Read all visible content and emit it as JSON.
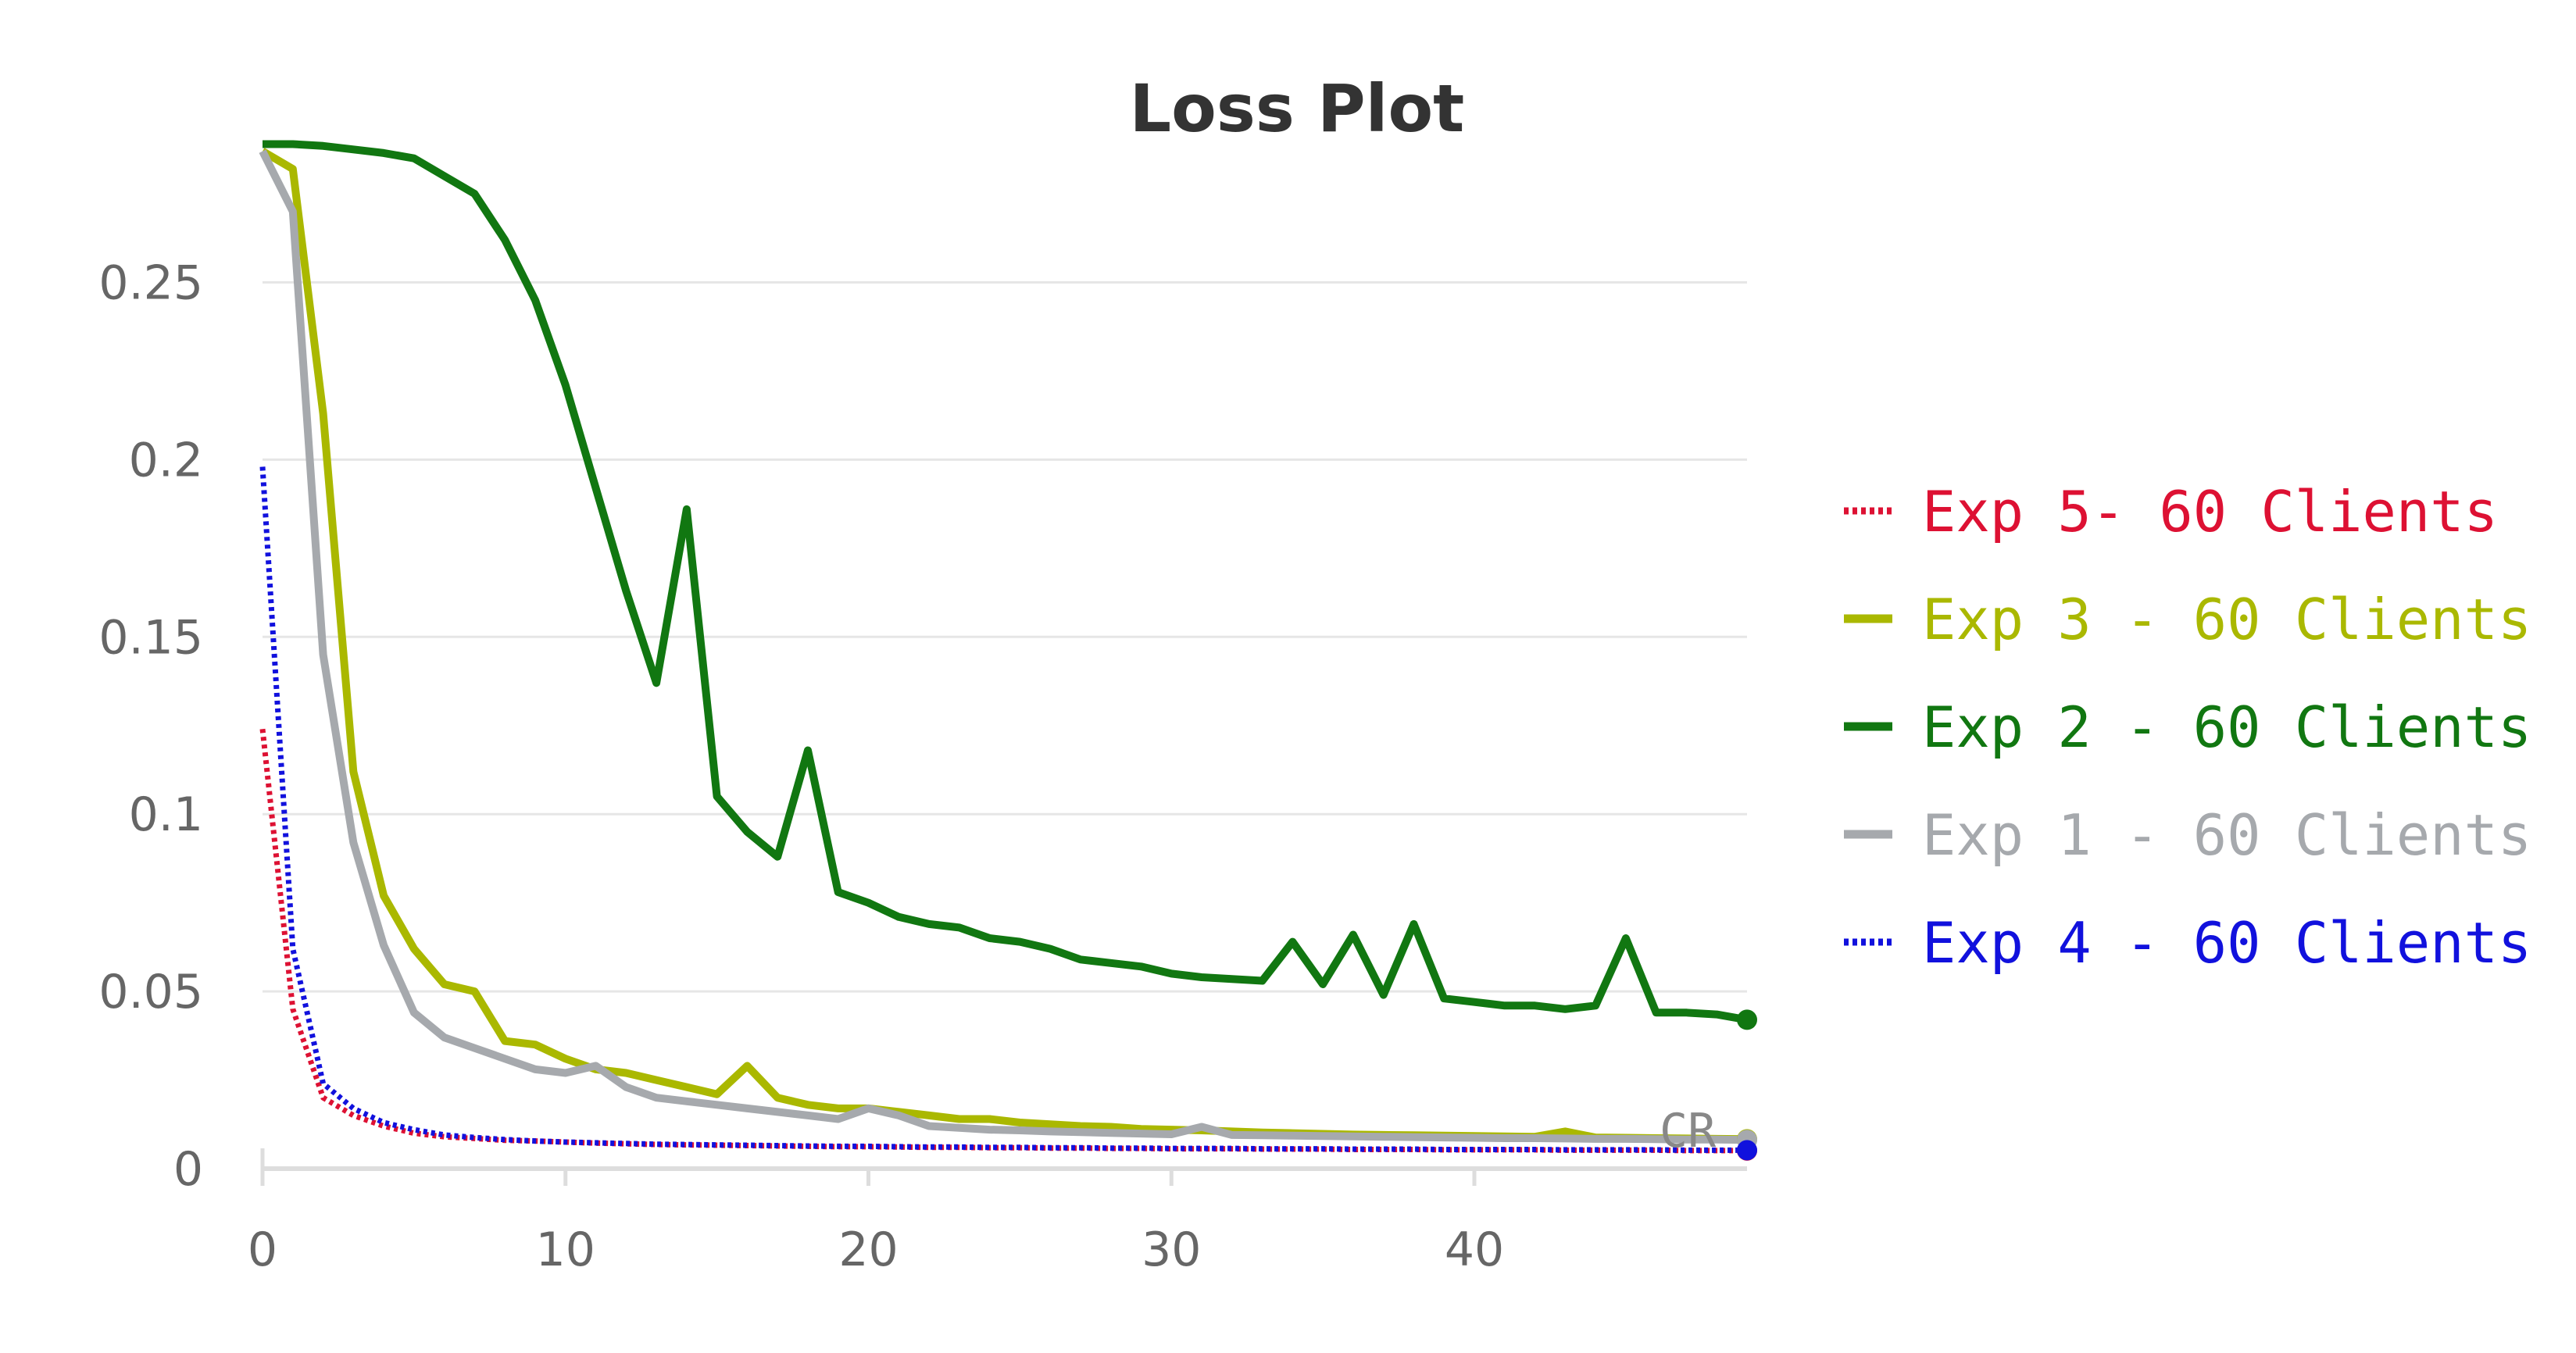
{
  "chart_data": {
    "type": "line",
    "title": "Loss Plot",
    "xlabel": "",
    "ylabel": "",
    "xlim": [
      0,
      49
    ],
    "ylim": [
      0,
      0.29
    ],
    "xticks": [
      0,
      10,
      20,
      30,
      40
    ],
    "xtick_labels": [
      "0",
      "10",
      "20",
      "30",
      "40"
    ],
    "yticks": [
      0,
      0.05,
      0.1,
      0.15,
      0.2,
      0.25
    ],
    "ytick_labels": [
      "0",
      "0.05",
      "0.1",
      "0.15",
      "0.2",
      "0.25"
    ],
    "grid": "horizontal",
    "legend_position": "right",
    "annotation": "CR",
    "series": [
      {
        "name": "Exp 5- 60 Clients",
        "color": "#dd1133",
        "style": "dotted",
        "x": [
          0,
          1,
          2,
          3,
          4,
          5,
          6,
          7,
          8,
          9,
          10,
          11,
          12,
          13,
          14,
          15,
          16,
          17,
          18,
          19,
          20,
          21,
          22,
          23,
          24,
          25,
          26,
          27,
          28,
          29,
          30,
          31,
          32,
          33,
          34,
          35,
          36,
          37,
          38,
          39,
          40,
          41,
          42,
          43,
          44,
          45,
          46,
          47,
          48,
          49
        ],
        "values": [
          0.124,
          0.045,
          0.02,
          0.015,
          0.012,
          0.01,
          0.009,
          0.0085,
          0.008,
          0.0078,
          0.0075,
          0.0072,
          0.007,
          0.0068,
          0.0067,
          0.0066,
          0.0065,
          0.0064,
          0.0063,
          0.0062,
          0.0062,
          0.0061,
          0.006,
          0.006,
          0.0059,
          0.0059,
          0.0058,
          0.0058,
          0.0057,
          0.0057,
          0.0056,
          0.0056,
          0.0056,
          0.0055,
          0.0055,
          0.0055,
          0.0054,
          0.0054,
          0.0054,
          0.0053,
          0.0053,
          0.0053,
          0.0053,
          0.0052,
          0.0052,
          0.0052,
          0.0052,
          0.0051,
          0.0051,
          0.0051
        ]
      },
      {
        "name": "Exp 3 - 60 Clients",
        "color": "#aab800",
        "style": "solid",
        "x": [
          0,
          1,
          2,
          3,
          4,
          5,
          6,
          7,
          8,
          9,
          10,
          11,
          12,
          13,
          14,
          15,
          16,
          17,
          18,
          19,
          20,
          21,
          22,
          23,
          24,
          25,
          26,
          27,
          28,
          29,
          30,
          31,
          32,
          33,
          34,
          35,
          36,
          37,
          38,
          39,
          40,
          41,
          42,
          43,
          44,
          45,
          46,
          47,
          48,
          49
        ],
        "values": [
          0.287,
          0.282,
          0.213,
          0.112,
          0.077,
          0.062,
          0.052,
          0.05,
          0.036,
          0.035,
          0.031,
          0.028,
          0.027,
          0.025,
          0.023,
          0.021,
          0.029,
          0.02,
          0.018,
          0.017,
          0.017,
          0.016,
          0.015,
          0.014,
          0.014,
          0.013,
          0.0125,
          0.012,
          0.0118,
          0.0112,
          0.011,
          0.0108,
          0.0105,
          0.0102,
          0.01,
          0.0098,
          0.0096,
          0.0095,
          0.0094,
          0.0093,
          0.0092,
          0.0091,
          0.009,
          0.0105,
          0.0088,
          0.0087,
          0.0086,
          0.0085,
          0.0084,
          0.0083
        ]
      },
      {
        "name": "Exp 2 - 60 Clients",
        "color": "#117711",
        "style": "solid",
        "x": [
          0,
          1,
          2,
          3,
          4,
          5,
          6,
          7,
          8,
          9,
          10,
          11,
          12,
          13,
          14,
          15,
          16,
          17,
          18,
          19,
          20,
          21,
          22,
          23,
          24,
          25,
          26,
          27,
          28,
          29,
          30,
          31,
          32,
          33,
          34,
          35,
          36,
          37,
          38,
          39,
          40,
          41,
          42,
          43,
          44,
          45,
          46,
          47,
          48,
          49
        ],
        "values": [
          0.289,
          0.289,
          0.2885,
          0.2875,
          0.2865,
          0.285,
          0.28,
          0.275,
          0.262,
          0.245,
          0.221,
          0.192,
          0.163,
          0.137,
          0.186,
          0.105,
          0.095,
          0.088,
          0.118,
          0.078,
          0.075,
          0.071,
          0.069,
          0.068,
          0.065,
          0.064,
          0.062,
          0.059,
          0.058,
          0.057,
          0.055,
          0.054,
          0.0535,
          0.053,
          0.064,
          0.052,
          0.066,
          0.049,
          0.069,
          0.048,
          0.047,
          0.046,
          0.046,
          0.045,
          0.046,
          0.065,
          0.044,
          0.044,
          0.0435,
          0.042
        ]
      },
      {
        "name": "Exp 1 - 60 Clients",
        "color": "#a6a9ad",
        "style": "solid",
        "x": [
          0,
          1,
          2,
          3,
          4,
          5,
          6,
          7,
          8,
          9,
          10,
          11,
          12,
          13,
          14,
          15,
          16,
          17,
          18,
          19,
          20,
          21,
          22,
          23,
          24,
          25,
          26,
          27,
          28,
          29,
          30,
          31,
          32,
          33,
          34,
          35,
          36,
          37,
          38,
          39,
          40,
          41,
          42,
          43,
          44,
          45,
          46,
          47,
          48,
          49
        ],
        "values": [
          0.287,
          0.27,
          0.145,
          0.092,
          0.063,
          0.044,
          0.037,
          0.034,
          0.031,
          0.028,
          0.027,
          0.029,
          0.023,
          0.02,
          0.019,
          0.018,
          0.017,
          0.016,
          0.015,
          0.014,
          0.017,
          0.015,
          0.012,
          0.0115,
          0.011,
          0.0108,
          0.0105,
          0.0103,
          0.0101,
          0.0099,
          0.0097,
          0.0118,
          0.0095,
          0.0094,
          0.0093,
          0.0092,
          0.0091,
          0.009,
          0.0089,
          0.0088,
          0.0087,
          0.0086,
          0.0086,
          0.0085,
          0.0084,
          0.0084,
          0.0083,
          0.0082,
          0.0082,
          0.0081
        ]
      },
      {
        "name": "Exp 4 - 60 Clients",
        "color": "#1111dd",
        "style": "dotted",
        "x": [
          0,
          1,
          2,
          3,
          4,
          5,
          6,
          7,
          8,
          9,
          10,
          11,
          12,
          13,
          14,
          15,
          16,
          17,
          18,
          19,
          20,
          21,
          22,
          23,
          24,
          25,
          26,
          27,
          28,
          29,
          30,
          31,
          32,
          33,
          34,
          35,
          36,
          37,
          38,
          39,
          40,
          41,
          42,
          43,
          44,
          45,
          46,
          47,
          48,
          49
        ],
        "values": [
          0.198,
          0.062,
          0.024,
          0.017,
          0.013,
          0.011,
          0.0095,
          0.0088,
          0.0082,
          0.0078,
          0.0075,
          0.0073,
          0.0071,
          0.0069,
          0.0068,
          0.0067,
          0.0066,
          0.0065,
          0.0064,
          0.0063,
          0.0063,
          0.0062,
          0.0061,
          0.0061,
          0.006,
          0.006,
          0.0059,
          0.0059,
          0.0058,
          0.0058,
          0.0057,
          0.0057,
          0.0057,
          0.0056,
          0.0056,
          0.0056,
          0.0055,
          0.0055,
          0.0055,
          0.0054,
          0.0054,
          0.0054,
          0.0054,
          0.0053,
          0.0053,
          0.0053,
          0.0053,
          0.0052,
          0.0052,
          0.0052
        ]
      }
    ]
  }
}
